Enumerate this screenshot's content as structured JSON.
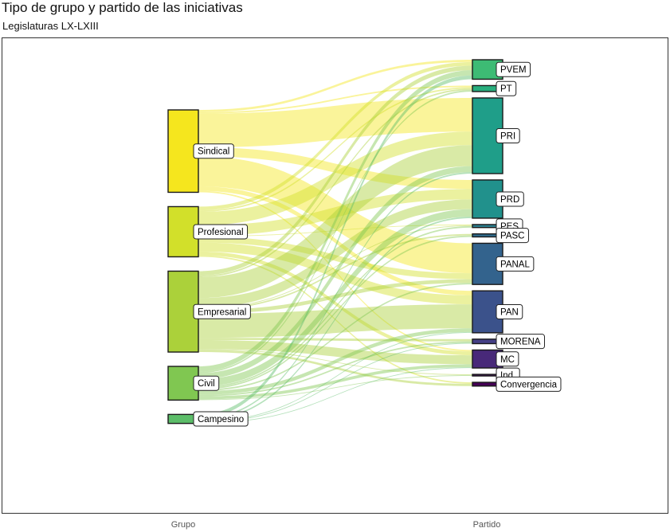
{
  "chart_data": {
    "type": "sankey",
    "title": "Tipo de grupo y partido de las iniciativas",
    "subtitle": "Legislaturas LX-LXIII",
    "axis_labels": [
      "Grupo",
      "Partido"
    ],
    "grupos": [
      {
        "name": "Sindical",
        "value": 110,
        "color": "#f5e61e"
      },
      {
        "name": "Profesional",
        "value": 67,
        "color": "#d2e02a"
      },
      {
        "name": "Empresarial",
        "value": 108,
        "color": "#abd13a"
      },
      {
        "name": "Civil",
        "value": 45,
        "color": "#80c751"
      },
      {
        "name": "Campesino",
        "value": 12,
        "color": "#5cbd69"
      }
    ],
    "partidos": [
      {
        "name": "PVEM",
        "value": 26,
        "color": "#3dbb74"
      },
      {
        "name": "PT",
        "value": 8,
        "color": "#28ae7d"
      },
      {
        "name": "PRI",
        "value": 101,
        "color": "#1f9e89"
      },
      {
        "name": "PRD",
        "value": 51,
        "color": "#21918c"
      },
      {
        "name": "PES",
        "value": 4,
        "color": "#2c7f8e"
      },
      {
        "name": "PASC",
        "value": 4,
        "color": "#2f6d8e"
      },
      {
        "name": "PANAL",
        "value": 55,
        "color": "#33638d"
      },
      {
        "name": "PAN",
        "value": 56,
        "color": "#3b528b"
      },
      {
        "name": "MORENA",
        "value": 6,
        "color": "#443f86"
      },
      {
        "name": "MC",
        "value": 24,
        "color": "#482979"
      },
      {
        "name": "Ind.",
        "value": 2,
        "color": "#440f5e"
      },
      {
        "name": "Convergencia",
        "value": 5,
        "color": "#440154"
      }
    ],
    "flows": [
      {
        "source": "Sindical",
        "target": "PVEM",
        "value": 3
      },
      {
        "source": "Sindical",
        "target": "PT",
        "value": 2
      },
      {
        "source": "Sindical",
        "target": "PRI",
        "value": 45
      },
      {
        "source": "Sindical",
        "target": "PRD",
        "value": 12
      },
      {
        "source": "Sindical",
        "target": "PANAL",
        "value": 40
      },
      {
        "source": "Sindical",
        "target": "PAN",
        "value": 6
      },
      {
        "source": "Sindical",
        "target": "MC",
        "value": 2
      },
      {
        "source": "Profesional",
        "target": "PVEM",
        "value": 5
      },
      {
        "source": "Profesional",
        "target": "PT",
        "value": 2
      },
      {
        "source": "Profesional",
        "target": "PRI",
        "value": 18
      },
      {
        "source": "Profesional",
        "target": "PRD",
        "value": 14
      },
      {
        "source": "Profesional",
        "target": "PES",
        "value": 1
      },
      {
        "source": "Profesional",
        "target": "PANAL",
        "value": 8
      },
      {
        "source": "Profesional",
        "target": "PAN",
        "value": 12
      },
      {
        "source": "Profesional",
        "target": "MC",
        "value": 5
      },
      {
        "source": "Profesional",
        "target": "Convergencia",
        "value": 2
      },
      {
        "source": "Empresarial",
        "target": "PVEM",
        "value": 6
      },
      {
        "source": "Empresarial",
        "target": "PT",
        "value": 2
      },
      {
        "source": "Empresarial",
        "target": "PRI",
        "value": 28
      },
      {
        "source": "Empresarial",
        "target": "PRD",
        "value": 13
      },
      {
        "source": "Empresarial",
        "target": "PES",
        "value": 1
      },
      {
        "source": "Empresarial",
        "target": "PASC",
        "value": 2
      },
      {
        "source": "Empresarial",
        "target": "PANAL",
        "value": 5
      },
      {
        "source": "Empresarial",
        "target": "PAN",
        "value": 32
      },
      {
        "source": "Empresarial",
        "target": "MORENA",
        "value": 3
      },
      {
        "source": "Empresarial",
        "target": "MC",
        "value": 12
      },
      {
        "source": "Empresarial",
        "target": "Ind.",
        "value": 1
      },
      {
        "source": "Empresarial",
        "target": "Convergencia",
        "value": 3
      },
      {
        "source": "Civil",
        "target": "PVEM",
        "value": 7
      },
      {
        "source": "Civil",
        "target": "PT",
        "value": 2
      },
      {
        "source": "Civil",
        "target": "PRI",
        "value": 8
      },
      {
        "source": "Civil",
        "target": "PRD",
        "value": 10
      },
      {
        "source": "Civil",
        "target": "PES",
        "value": 2
      },
      {
        "source": "Civil",
        "target": "PASC",
        "value": 2
      },
      {
        "source": "Civil",
        "target": "PANAL",
        "value": 2
      },
      {
        "source": "Civil",
        "target": "PAN",
        "value": 5
      },
      {
        "source": "Civil",
        "target": "MORENA",
        "value": 2
      },
      {
        "source": "Civil",
        "target": "MC",
        "value": 4
      },
      {
        "source": "Civil",
        "target": "Ind.",
        "value": 1
      },
      {
        "source": "Campesino",
        "target": "PVEM",
        "value": 5
      },
      {
        "source": "Campesino",
        "target": "PRI",
        "value": 2
      },
      {
        "source": "Campesino",
        "target": "PRD",
        "value": 2
      },
      {
        "source": "Campesino",
        "target": "PAN",
        "value": 1
      },
      {
        "source": "Campesino",
        "target": "MORENA",
        "value": 1
      },
      {
        "source": "Campesino",
        "target": "MC",
        "value": 1
      }
    ]
  }
}
